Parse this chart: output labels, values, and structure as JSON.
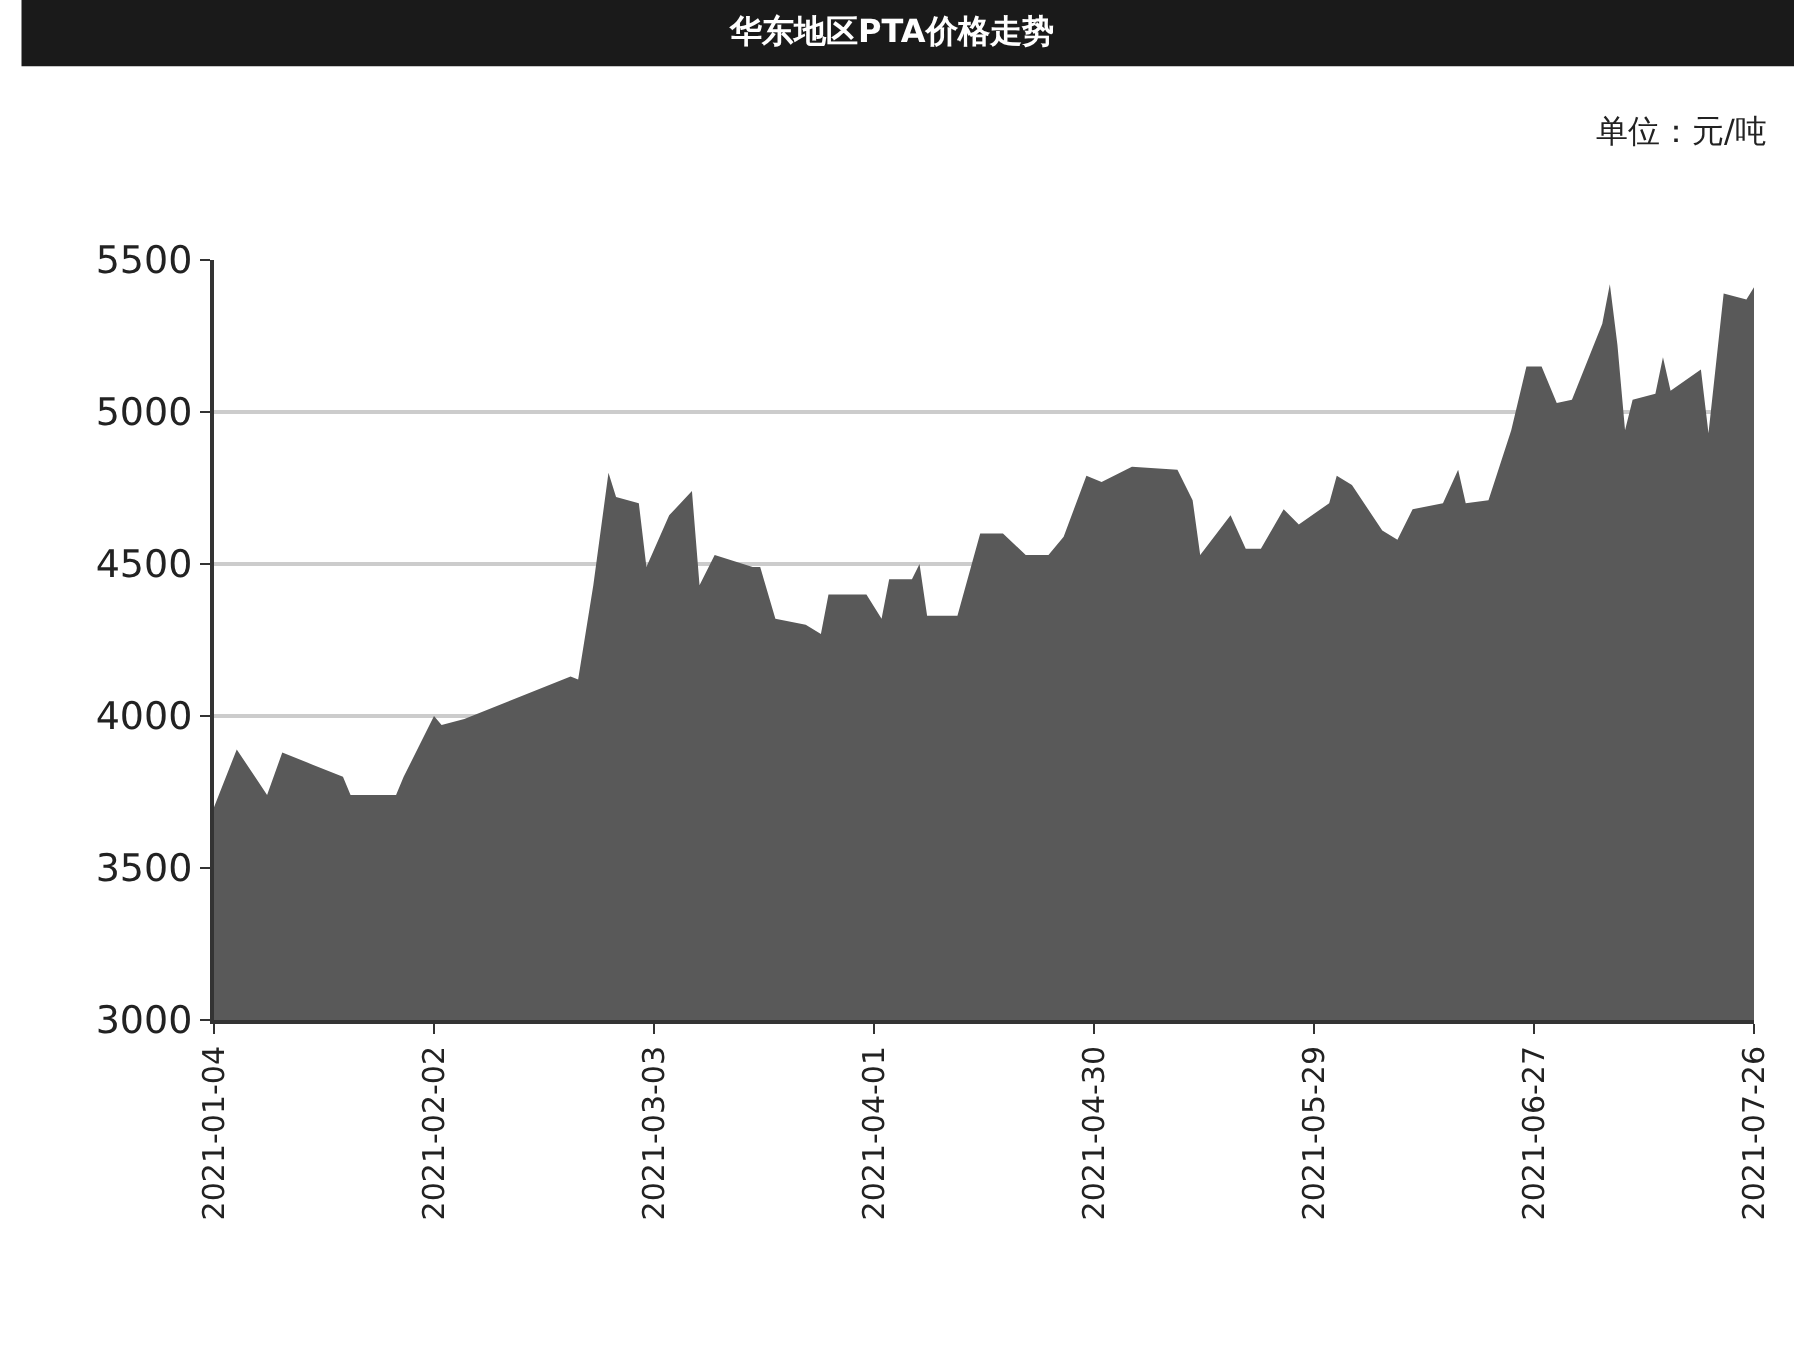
{
  "chart_data": {
    "type": "area",
    "title": "华东地区PTA价格走势",
    "annotations": [
      "单位：元/吨"
    ],
    "x": [
      "2021-01-04",
      "2021-01-07",
      "2021-01-11",
      "2021-01-13",
      "2021-01-17",
      "2021-01-21",
      "2021-01-22",
      "2021-01-28",
      "2021-01-29",
      "2021-02-02",
      "2021-02-03",
      "2021-02-06",
      "2021-02-20",
      "2021-02-21",
      "2021-02-23",
      "2021-02-25",
      "2021-02-26",
      "2021-03-01",
      "2021-03-02",
      "2021-03-05",
      "2021-03-08",
      "2021-03-09",
      "2021-03-11",
      "2021-03-16",
      "2021-03-17",
      "2021-03-19",
      "2021-03-23",
      "2021-03-25",
      "2021-03-26",
      "2021-03-31",
      "2021-04-02",
      "2021-04-03",
      "2021-04-06",
      "2021-04-07",
      "2021-04-08",
      "2021-04-12",
      "2021-04-15",
      "2021-04-18",
      "2021-04-21",
      "2021-04-24",
      "2021-04-26",
      "2021-04-29",
      "2021-05-01",
      "2021-05-05",
      "2021-05-11",
      "2021-05-13",
      "2021-05-14",
      "2021-05-18",
      "2021-05-20",
      "2021-05-22",
      "2021-05-25",
      "2021-05-27",
      "2021-05-31",
      "2021-06-01",
      "2021-06-03",
      "2021-06-07",
      "2021-06-09",
      "2021-06-11",
      "2021-06-15",
      "2021-06-17",
      "2021-06-18",
      "2021-06-21",
      "2021-06-24",
      "2021-06-26",
      "2021-06-28",
      "2021-06-30",
      "2021-07-02",
      "2021-07-06",
      "2021-07-07",
      "2021-07-08",
      "2021-07-09",
      "2021-07-10",
      "2021-07-13",
      "2021-07-14",
      "2021-07-15",
      "2021-07-19",
      "2021-07-20",
      "2021-07-22",
      "2021-07-25",
      "2021-07-26"
    ],
    "series": [
      {
        "color": "#595959",
        "values": [
          3700,
          3890,
          3740,
          3880,
          3840,
          3800,
          3740,
          3740,
          3800,
          4000,
          3970,
          3990,
          4130,
          4120,
          4430,
          4800,
          4720,
          4700,
          4490,
          4660,
          4740,
          4430,
          4530,
          4490,
          4490,
          4320,
          4300,
          4270,
          4400,
          4400,
          4320,
          4450,
          4450,
          4500,
          4330,
          4330,
          4600,
          4600,
          4530,
          4530,
          4590,
          4790,
          4770,
          4820,
          4810,
          4710,
          4530,
          4660,
          4550,
          4550,
          4680,
          4630,
          4700,
          4790,
          4760,
          4610,
          4580,
          4680,
          4700,
          4810,
          4700,
          4710,
          4940,
          5150,
          5150,
          5030,
          5040,
          5290,
          5420,
          5220,
          4940,
          5040,
          5060,
          5180,
          5070,
          5140,
          4930,
          5390,
          5370,
          5410
        ]
      }
    ],
    "xlim": [
      "2021-01-04",
      "2021-07-26"
    ],
    "xticks": [
      "2021-01-04",
      "2021-02-02",
      "2021-03-03",
      "2021-04-01",
      "2021-04-30",
      "2021-05-29",
      "2021-06-27",
      "2021-07-26"
    ],
    "ylim": [
      3000,
      5500
    ],
    "yticks": [
      3000,
      3500,
      4000,
      4500,
      5000,
      5500
    ],
    "grid": "y"
  }
}
